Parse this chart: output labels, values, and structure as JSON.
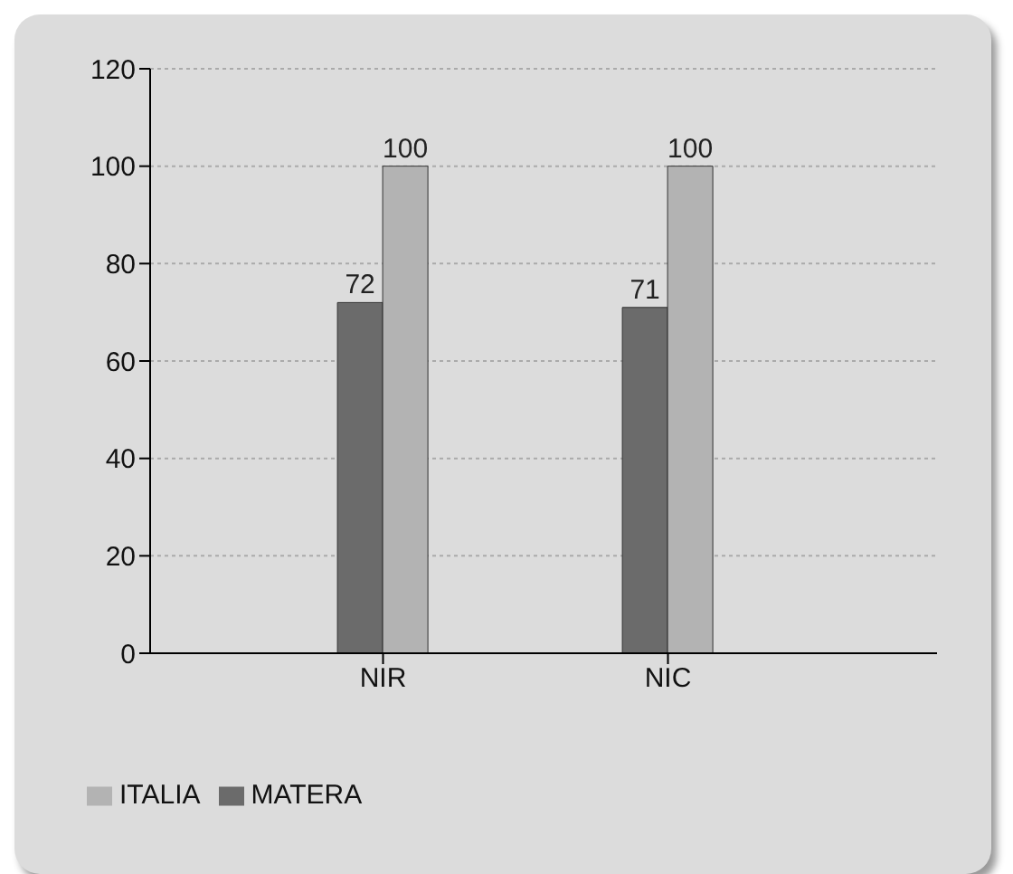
{
  "chart_data": {
    "type": "bar",
    "categories": [
      "NIR",
      "NIC"
    ],
    "series": [
      {
        "name": "MATERA",
        "color": "#6b6b6b",
        "values": [
          72,
          71
        ]
      },
      {
        "name": "ITALIA",
        "color": "#b3b3b3",
        "values": [
          100,
          100
        ]
      }
    ],
    "ylim": [
      0,
      120
    ],
    "yticks": [
      0,
      20,
      40,
      60,
      80,
      100,
      120
    ],
    "grid": "y",
    "legend": "bottom left",
    "data_labels": true
  }
}
